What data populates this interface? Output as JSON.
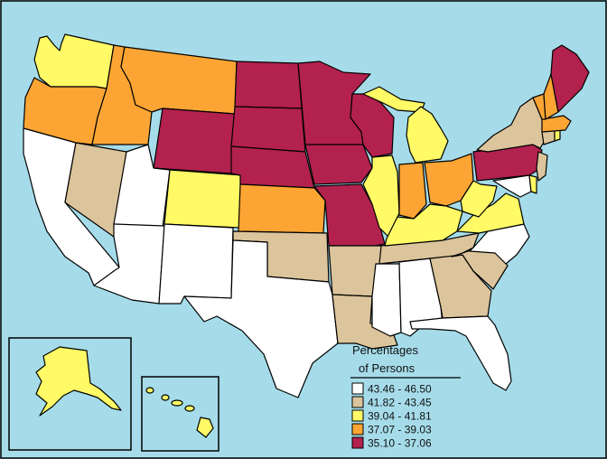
{
  "colors": {
    "ocean": "#a6dcea",
    "c1": "#ffffff",
    "c2": "#dcc49c",
    "c3": "#fffa66",
    "c4": "#fca534",
    "c5": "#b3214e"
  },
  "legend": {
    "title_line1": "Percentages",
    "title_line2": "of Persons",
    "items": [
      {
        "label": "43.46 - 46.50",
        "color": "#ffffff"
      },
      {
        "label": "41.82 - 43.45",
        "color": "#dcc49c"
      },
      {
        "label": "39.04 - 41.81",
        "color": "#fffa66"
      },
      {
        "label": "37.07 - 39.03",
        "color": "#fca534"
      },
      {
        "label": "35.10 - 37.06",
        "color": "#b3214e"
      }
    ]
  }
}
